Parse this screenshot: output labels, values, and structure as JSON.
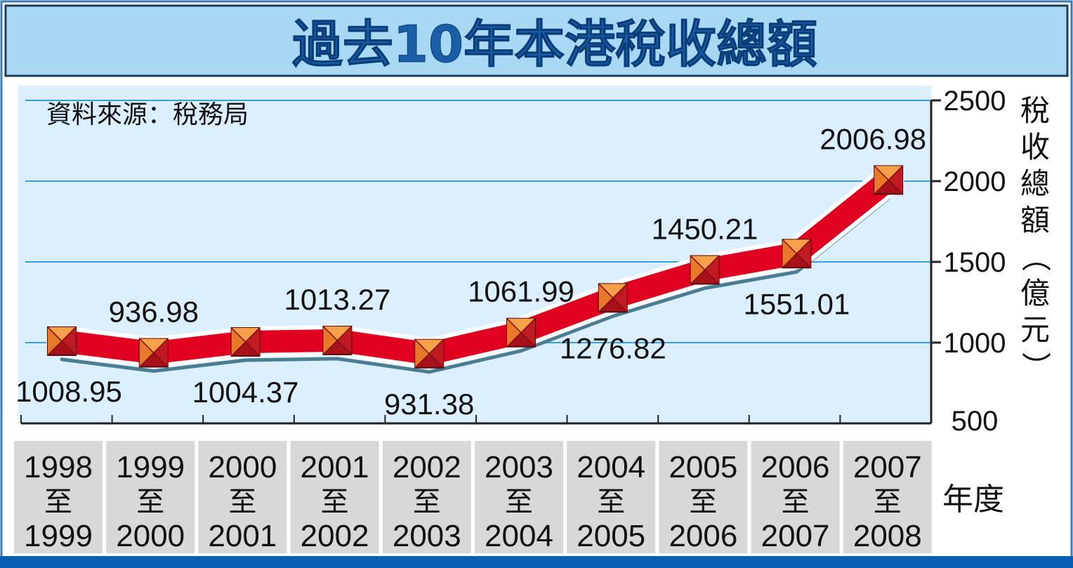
{
  "title": "過去10年本港稅收總額",
  "source_note": "資料來源：稅務局",
  "colors": {
    "title_band": "#a8d8f4",
    "title_text": "#1a5ea8",
    "plot_bg": "#dcefff",
    "gridline": "#3a9fd8",
    "line_fill": "#e00020",
    "line_shadow": "#4a7c94",
    "marker_light": "#f7a04a",
    "marker_dark": "#a8101a",
    "footer_band": "#0a5fb4",
    "category_cell": "#d8d8d8"
  },
  "chart_data": {
    "type": "line",
    "title": "過去10年本港稅收總額",
    "categories": [
      {
        "from": "1998",
        "sep": "至",
        "to": "1999"
      },
      {
        "from": "1999",
        "sep": "至",
        "to": "2000"
      },
      {
        "from": "2000",
        "sep": "至",
        "to": "2001"
      },
      {
        "from": "2001",
        "sep": "至",
        "to": "2002"
      },
      {
        "from": "2002",
        "sep": "至",
        "to": "2003"
      },
      {
        "from": "2003",
        "sep": "至",
        "to": "2004"
      },
      {
        "from": "2004",
        "sep": "至",
        "to": "2005"
      },
      {
        "from": "2005",
        "sep": "至",
        "to": "2006"
      },
      {
        "from": "2006",
        "sep": "至",
        "to": "2007"
      },
      {
        "from": "2007",
        "sep": "至",
        "to": "2008"
      }
    ],
    "values": [
      1008.95,
      936.98,
      1004.37,
      1013.27,
      931.38,
      1061.99,
      1276.82,
      1450.21,
      1551.01,
      2006.98
    ],
    "value_labels": [
      "1008.95",
      "936.98",
      "1004.37",
      "1013.27",
      "931.38",
      "1061.99",
      "1276.82",
      "1450.21",
      "1551.01",
      "2006.98"
    ],
    "label_positions": [
      "below",
      "above",
      "below",
      "above",
      "below",
      "above",
      "below",
      "above",
      "below",
      "above"
    ],
    "xlabel": "年度",
    "ylabel": "稅收總額（億元）",
    "ylim": [
      500,
      2500
    ],
    "yticks": [
      500,
      1000,
      1500,
      2000,
      2500
    ],
    "y_axis_side": "right",
    "grid": true
  }
}
